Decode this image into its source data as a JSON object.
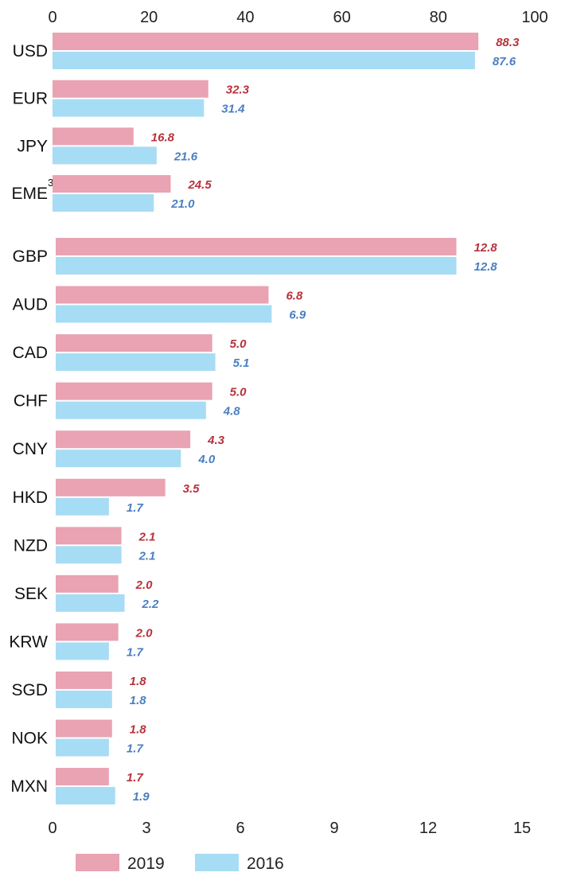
{
  "chart_data": [
    {
      "type": "bar",
      "orientation": "horizontal",
      "axis_ticks": [
        "0",
        "20",
        "40",
        "60",
        "80",
        "100"
      ],
      "xlim": [
        0,
        100
      ],
      "categories": [
        "USD",
        "EUR",
        "JPY",
        "EME"
      ],
      "category_superscripts": [
        "",
        "",
        "",
        "3"
      ],
      "series": [
        {
          "name": "2019",
          "values": [
            88.3,
            32.3,
            16.8,
            24.5
          ],
          "labels": [
            "88.3",
            "32.3",
            "16.8",
            "24.5"
          ]
        },
        {
          "name": "2016",
          "values": [
            87.6,
            31.4,
            21.6,
            21.0
          ],
          "labels": [
            "87.6",
            "31.4",
            "21.6",
            "21.0"
          ]
        }
      ]
    },
    {
      "type": "bar",
      "orientation": "horizontal",
      "axis_ticks": [
        "0",
        "3",
        "6",
        "9",
        "12",
        "15"
      ],
      "xlim": [
        0,
        15
      ],
      "categories": [
        "GBP",
        "AUD",
        "CAD",
        "CHF",
        "CNY",
        "HKD",
        "NZD",
        "SEK",
        "KRW",
        "SGD",
        "NOK",
        "MXN"
      ],
      "category_superscripts": [
        "",
        "",
        "",
        "",
        "",
        "",
        "",
        "",
        "",
        "",
        "",
        ""
      ],
      "series": [
        {
          "name": "2019",
          "values": [
            12.8,
            6.8,
            5.0,
            5.0,
            4.3,
            3.5,
            2.1,
            2.0,
            2.0,
            1.8,
            1.8,
            1.7
          ],
          "labels": [
            "12.8",
            "6.8",
            "5.0",
            "5.0",
            "4.3",
            "3.5",
            "2.1",
            "2.0",
            "2.0",
            "1.8",
            "1.8",
            "1.7"
          ]
        },
        {
          "name": "2016",
          "values": [
            12.8,
            6.9,
            5.1,
            4.8,
            4.0,
            1.7,
            2.1,
            2.2,
            1.7,
            1.8,
            1.7,
            1.9
          ],
          "labels": [
            "12.8",
            "6.9",
            "5.1",
            "4.8",
            "4.0",
            "1.7",
            "2.1",
            "2.2",
            "1.7",
            "1.8",
            "1.7",
            "1.9"
          ]
        }
      ]
    }
  ],
  "legend": {
    "placement": "bottom-left",
    "items": [
      {
        "label": "2019",
        "color": "#e9a3b3"
      },
      {
        "label": "2016",
        "color": "#a7dcf5"
      }
    ]
  },
  "colors": {
    "bar_2019": "#e9a3b3",
    "bar_2016": "#a7dcf5",
    "label_2019": "#b8323c",
    "label_2016": "#4a7fc1"
  }
}
